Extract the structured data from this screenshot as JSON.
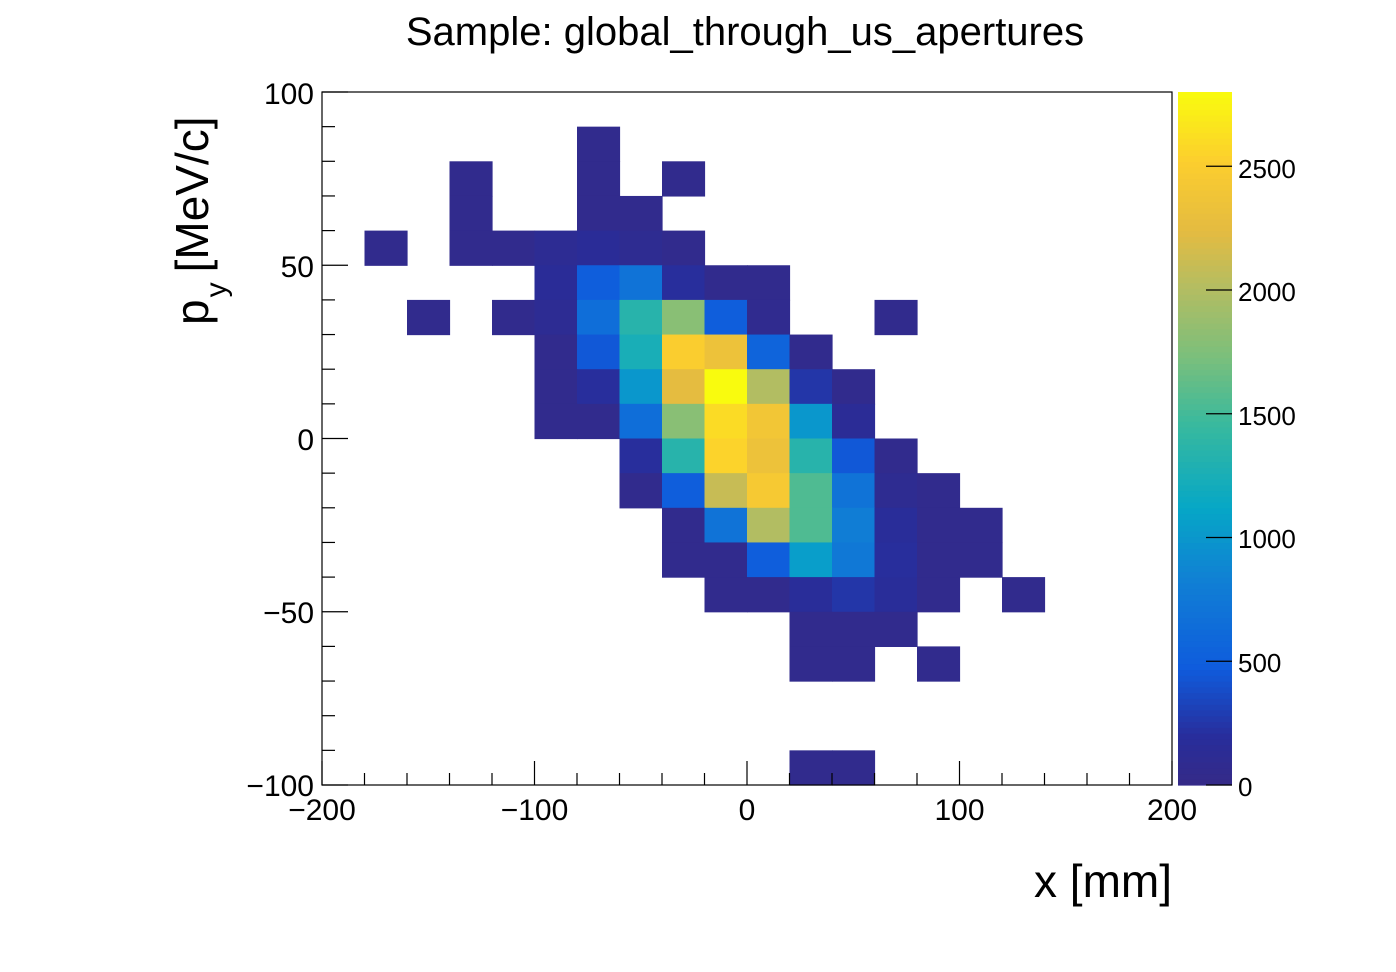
{
  "chart_data": {
    "type": "heatmap",
    "title": "Sample: global_through_us_apertures",
    "xlabel": "x [mm]",
    "ylabel_main": "p",
    "ylabel_sub": "y",
    "ylabel_unit": "[MeV/c]",
    "xlim": [
      -200,
      200
    ],
    "ylim": [
      -100,
      100
    ],
    "x_ticks": [
      "−200",
      "−100",
      "0",
      "100",
      "200"
    ],
    "y_ticks": [
      "−100",
      "−50",
      "0",
      "50",
      "100"
    ],
    "colorbar": {
      "range": [
        0,
        2800
      ],
      "ticks": [
        "0",
        "500",
        "1000",
        "1500",
        "2000",
        "2500"
      ]
    },
    "bin_width_x": 20,
    "bin_height_y": 10,
    "grid": false,
    "bins": [
      {
        "x0": -80,
        "y0": 80,
        "v": 60
      },
      {
        "x0": -140,
        "y0": 70,
        "v": 60
      },
      {
        "x0": -80,
        "y0": 70,
        "v": 60
      },
      {
        "x0": -40,
        "y0": 70,
        "v": 60
      },
      {
        "x0": -140,
        "y0": 60,
        "v": 60
      },
      {
        "x0": -80,
        "y0": 60,
        "v": 60
      },
      {
        "x0": -60,
        "y0": 60,
        "v": 60
      },
      {
        "x0": -180,
        "y0": 50,
        "v": 60
      },
      {
        "x0": -140,
        "y0": 50,
        "v": 60
      },
      {
        "x0": -120,
        "y0": 50,
        "v": 60
      },
      {
        "x0": -100,
        "y0": 50,
        "v": 120
      },
      {
        "x0": -80,
        "y0": 50,
        "v": 160
      },
      {
        "x0": -60,
        "y0": 50,
        "v": 100
      },
      {
        "x0": -40,
        "y0": 50,
        "v": 60
      },
      {
        "x0": -100,
        "y0": 40,
        "v": 160
      },
      {
        "x0": -80,
        "y0": 40,
        "v": 500
      },
      {
        "x0": -60,
        "y0": 40,
        "v": 700
      },
      {
        "x0": -40,
        "y0": 40,
        "v": 200
      },
      {
        "x0": -20,
        "y0": 40,
        "v": 60
      },
      {
        "x0": 0,
        "y0": 40,
        "v": 60
      },
      {
        "x0": -160,
        "y0": 30,
        "v": 60
      },
      {
        "x0": -120,
        "y0": 30,
        "v": 60
      },
      {
        "x0": -100,
        "y0": 30,
        "v": 120
      },
      {
        "x0": -80,
        "y0": 30,
        "v": 650
      },
      {
        "x0": -60,
        "y0": 30,
        "v": 1350
      },
      {
        "x0": -40,
        "y0": 30,
        "v": 1800
      },
      {
        "x0": -20,
        "y0": 30,
        "v": 500
      },
      {
        "x0": 0,
        "y0": 30,
        "v": 80
      },
      {
        "x0": 60,
        "y0": 30,
        "v": 60
      },
      {
        "x0": -100,
        "y0": 20,
        "v": 60
      },
      {
        "x0": -80,
        "y0": 20,
        "v": 450
      },
      {
        "x0": -60,
        "y0": 20,
        "v": 1250
      },
      {
        "x0": -40,
        "y0": 20,
        "v": 2500
      },
      {
        "x0": -20,
        "y0": 20,
        "v": 2350
      },
      {
        "x0": 0,
        "y0": 20,
        "v": 550
      },
      {
        "x0": 20,
        "y0": 20,
        "v": 60
      },
      {
        "x0": -100,
        "y0": 10,
        "v": 60
      },
      {
        "x0": -80,
        "y0": 10,
        "v": 200
      },
      {
        "x0": -60,
        "y0": 10,
        "v": 1000
      },
      {
        "x0": -40,
        "y0": 10,
        "v": 2250
      },
      {
        "x0": -20,
        "y0": 10,
        "v": 2800
      },
      {
        "x0": 0,
        "y0": 10,
        "v": 2000
      },
      {
        "x0": 20,
        "y0": 10,
        "v": 250
      },
      {
        "x0": 40,
        "y0": 10,
        "v": 60
      },
      {
        "x0": -100,
        "y0": 0,
        "v": 60
      },
      {
        "x0": -80,
        "y0": 0,
        "v": 60
      },
      {
        "x0": -60,
        "y0": 0,
        "v": 650
      },
      {
        "x0": -40,
        "y0": 0,
        "v": 1800
      },
      {
        "x0": -20,
        "y0": 0,
        "v": 2600
      },
      {
        "x0": 0,
        "y0": 0,
        "v": 2400
      },
      {
        "x0": 20,
        "y0": 0,
        "v": 1000
      },
      {
        "x0": 40,
        "y0": 0,
        "v": 150
      },
      {
        "x0": -60,
        "y0": -10,
        "v": 200
      },
      {
        "x0": -40,
        "y0": -10,
        "v": 1350
      },
      {
        "x0": -20,
        "y0": -10,
        "v": 2550
      },
      {
        "x0": 0,
        "y0": -10,
        "v": 2350
      },
      {
        "x0": 20,
        "y0": -10,
        "v": 1350
      },
      {
        "x0": 40,
        "y0": -10,
        "v": 450
      },
      {
        "x0": 60,
        "y0": -10,
        "v": 60
      },
      {
        "x0": -60,
        "y0": -20,
        "v": 60
      },
      {
        "x0": -40,
        "y0": -20,
        "v": 500
      },
      {
        "x0": -20,
        "y0": -20,
        "v": 2100
      },
      {
        "x0": 0,
        "y0": -20,
        "v": 2450
      },
      {
        "x0": 20,
        "y0": -20,
        "v": 1550
      },
      {
        "x0": 40,
        "y0": -20,
        "v": 700
      },
      {
        "x0": 60,
        "y0": -20,
        "v": 100
      },
      {
        "x0": 80,
        "y0": -20,
        "v": 60
      },
      {
        "x0": -40,
        "y0": -30,
        "v": 60
      },
      {
        "x0": -20,
        "y0": -30,
        "v": 700
      },
      {
        "x0": 0,
        "y0": -30,
        "v": 2000
      },
      {
        "x0": 20,
        "y0": -30,
        "v": 1550
      },
      {
        "x0": 40,
        "y0": -30,
        "v": 800
      },
      {
        "x0": 60,
        "y0": -30,
        "v": 180
      },
      {
        "x0": 80,
        "y0": -30,
        "v": 60
      },
      {
        "x0": 100,
        "y0": -30,
        "v": 60
      },
      {
        "x0": -40,
        "y0": -40,
        "v": 60
      },
      {
        "x0": -20,
        "y0": -40,
        "v": 60
      },
      {
        "x0": 0,
        "y0": -40,
        "v": 500
      },
      {
        "x0": 20,
        "y0": -40,
        "v": 1050
      },
      {
        "x0": 40,
        "y0": -40,
        "v": 750
      },
      {
        "x0": 60,
        "y0": -40,
        "v": 200
      },
      {
        "x0": 80,
        "y0": -40,
        "v": 60
      },
      {
        "x0": 100,
        "y0": -40,
        "v": 60
      },
      {
        "x0": -20,
        "y0": -50,
        "v": 60
      },
      {
        "x0": 0,
        "y0": -50,
        "v": 60
      },
      {
        "x0": 20,
        "y0": -50,
        "v": 180
      },
      {
        "x0": 40,
        "y0": -50,
        "v": 250
      },
      {
        "x0": 60,
        "y0": -50,
        "v": 180
      },
      {
        "x0": 80,
        "y0": -50,
        "v": 60
      },
      {
        "x0": 120,
        "y0": -50,
        "v": 60
      },
      {
        "x0": 20,
        "y0": -60,
        "v": 60
      },
      {
        "x0": 40,
        "y0": -60,
        "v": 60
      },
      {
        "x0": 60,
        "y0": -60,
        "v": 60
      },
      {
        "x0": 20,
        "y0": -70,
        "v": 60
      },
      {
        "x0": 40,
        "y0": -70,
        "v": 60
      },
      {
        "x0": 80,
        "y0": -70,
        "v": 60
      },
      {
        "x0": 20,
        "y0": -100,
        "v": 60
      },
      {
        "x0": 40,
        "y0": -100,
        "v": 60
      }
    ]
  }
}
